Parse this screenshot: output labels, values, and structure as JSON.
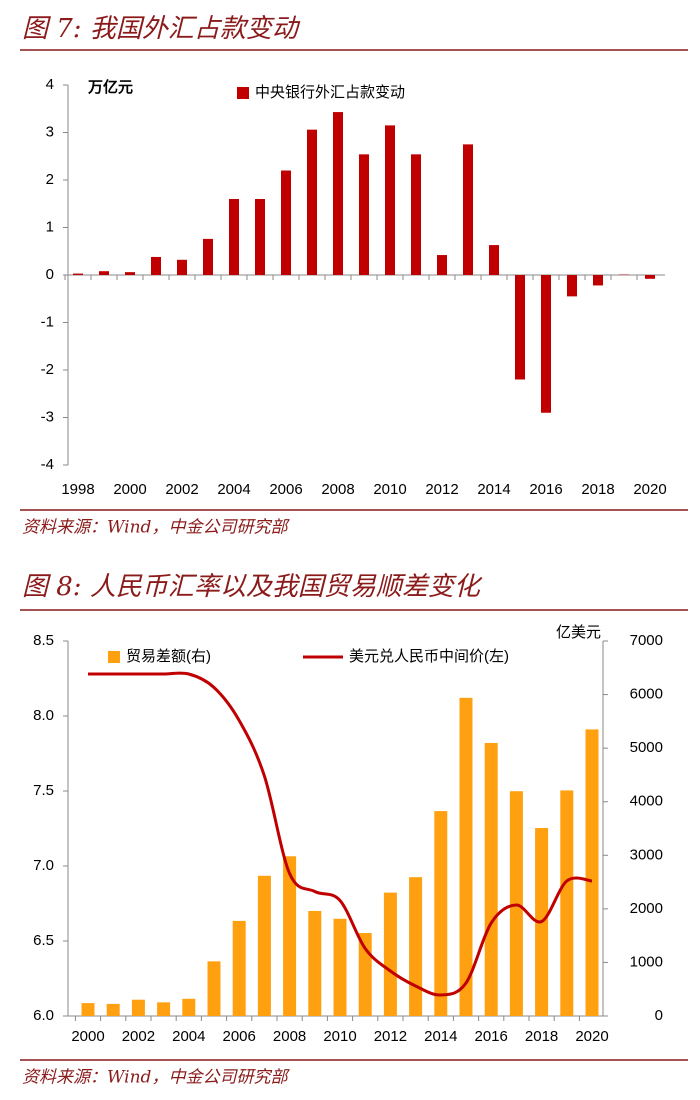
{
  "chart_data": [
    {
      "type": "bar",
      "title": "图 7: 我国外汇占款变动",
      "ylabel": "万亿元",
      "source": "资料来源：Wind，中金公司研究部",
      "categories": [
        "1998",
        null,
        "2000",
        null,
        "2002",
        null,
        "2004",
        null,
        "2006",
        null,
        "2008",
        null,
        "2010",
        null,
        "2012",
        null,
        "2014",
        null,
        "2016",
        null,
        "2018",
        null,
        "2020"
      ],
      "series": [
        {
          "name": "中央银行外汇占款变动",
          "color": "#c00000",
          "values": [
            0.03,
            0.08,
            0.06,
            0.38,
            0.32,
            0.76,
            1.6,
            1.6,
            2.2,
            3.06,
            3.43,
            2.54,
            3.15,
            2.54,
            0.42,
            2.75,
            0.63,
            -2.2,
            -2.9,
            -0.45,
            -0.22,
            0.01,
            -0.08
          ]
        }
      ],
      "ylim": [
        -4,
        4
      ],
      "yticks": [
        -4,
        -3,
        -2,
        -1,
        0,
        1,
        2,
        3,
        4
      ],
      "grid": false
    },
    {
      "type": "combo",
      "title": "图 8: 人民币汇率以及我国贸易顺差变化",
      "y2label": "亿美元",
      "source": "资料来源：Wind，中金公司研究部",
      "categories": [
        "2000",
        null,
        "2002",
        null,
        "2004",
        null,
        "2006",
        null,
        "2008",
        null,
        "2010",
        null,
        "2012",
        null,
        "2014",
        null,
        "2016",
        null,
        "2018",
        null,
        "2020"
      ],
      "series": [
        {
          "name": "贸易差额(右)",
          "type": "bar",
          "axis": "y2",
          "color": "#ffa010",
          "values": [
            241,
            226,
            304,
            255,
            321,
            1020,
            1775,
            2618,
            2981,
            1961,
            1815,
            1549,
            2303,
            2592,
            3825,
            5939,
            5097,
            4196,
            3509,
            4211,
            5350
          ]
        },
        {
          "name": "美元兑人民币中间价(左)",
          "type": "line",
          "color": "#c00000",
          "values": [
            8.28,
            8.28,
            8.28,
            8.28,
            8.28,
            8.19,
            7.97,
            7.6,
            6.95,
            6.83,
            6.77,
            6.45,
            6.3,
            6.2,
            6.14,
            6.22,
            6.62,
            6.74,
            6.63,
            6.9,
            6.9
          ]
        }
      ],
      "ylim": [
        6,
        8.5
      ],
      "yticks": [
        {
          "value": 6,
          "label": "6.0"
        },
        6.5,
        {
          "value": 7,
          "label": "7.0"
        },
        7.5,
        {
          "value": 8,
          "label": "8.0"
        },
        8.5
      ],
      "y2lim": [
        0,
        7000
      ],
      "y2ticks": [
        0,
        1000,
        2000,
        3000,
        4000,
        5000,
        6000,
        7000
      ],
      "grid": false
    }
  ]
}
